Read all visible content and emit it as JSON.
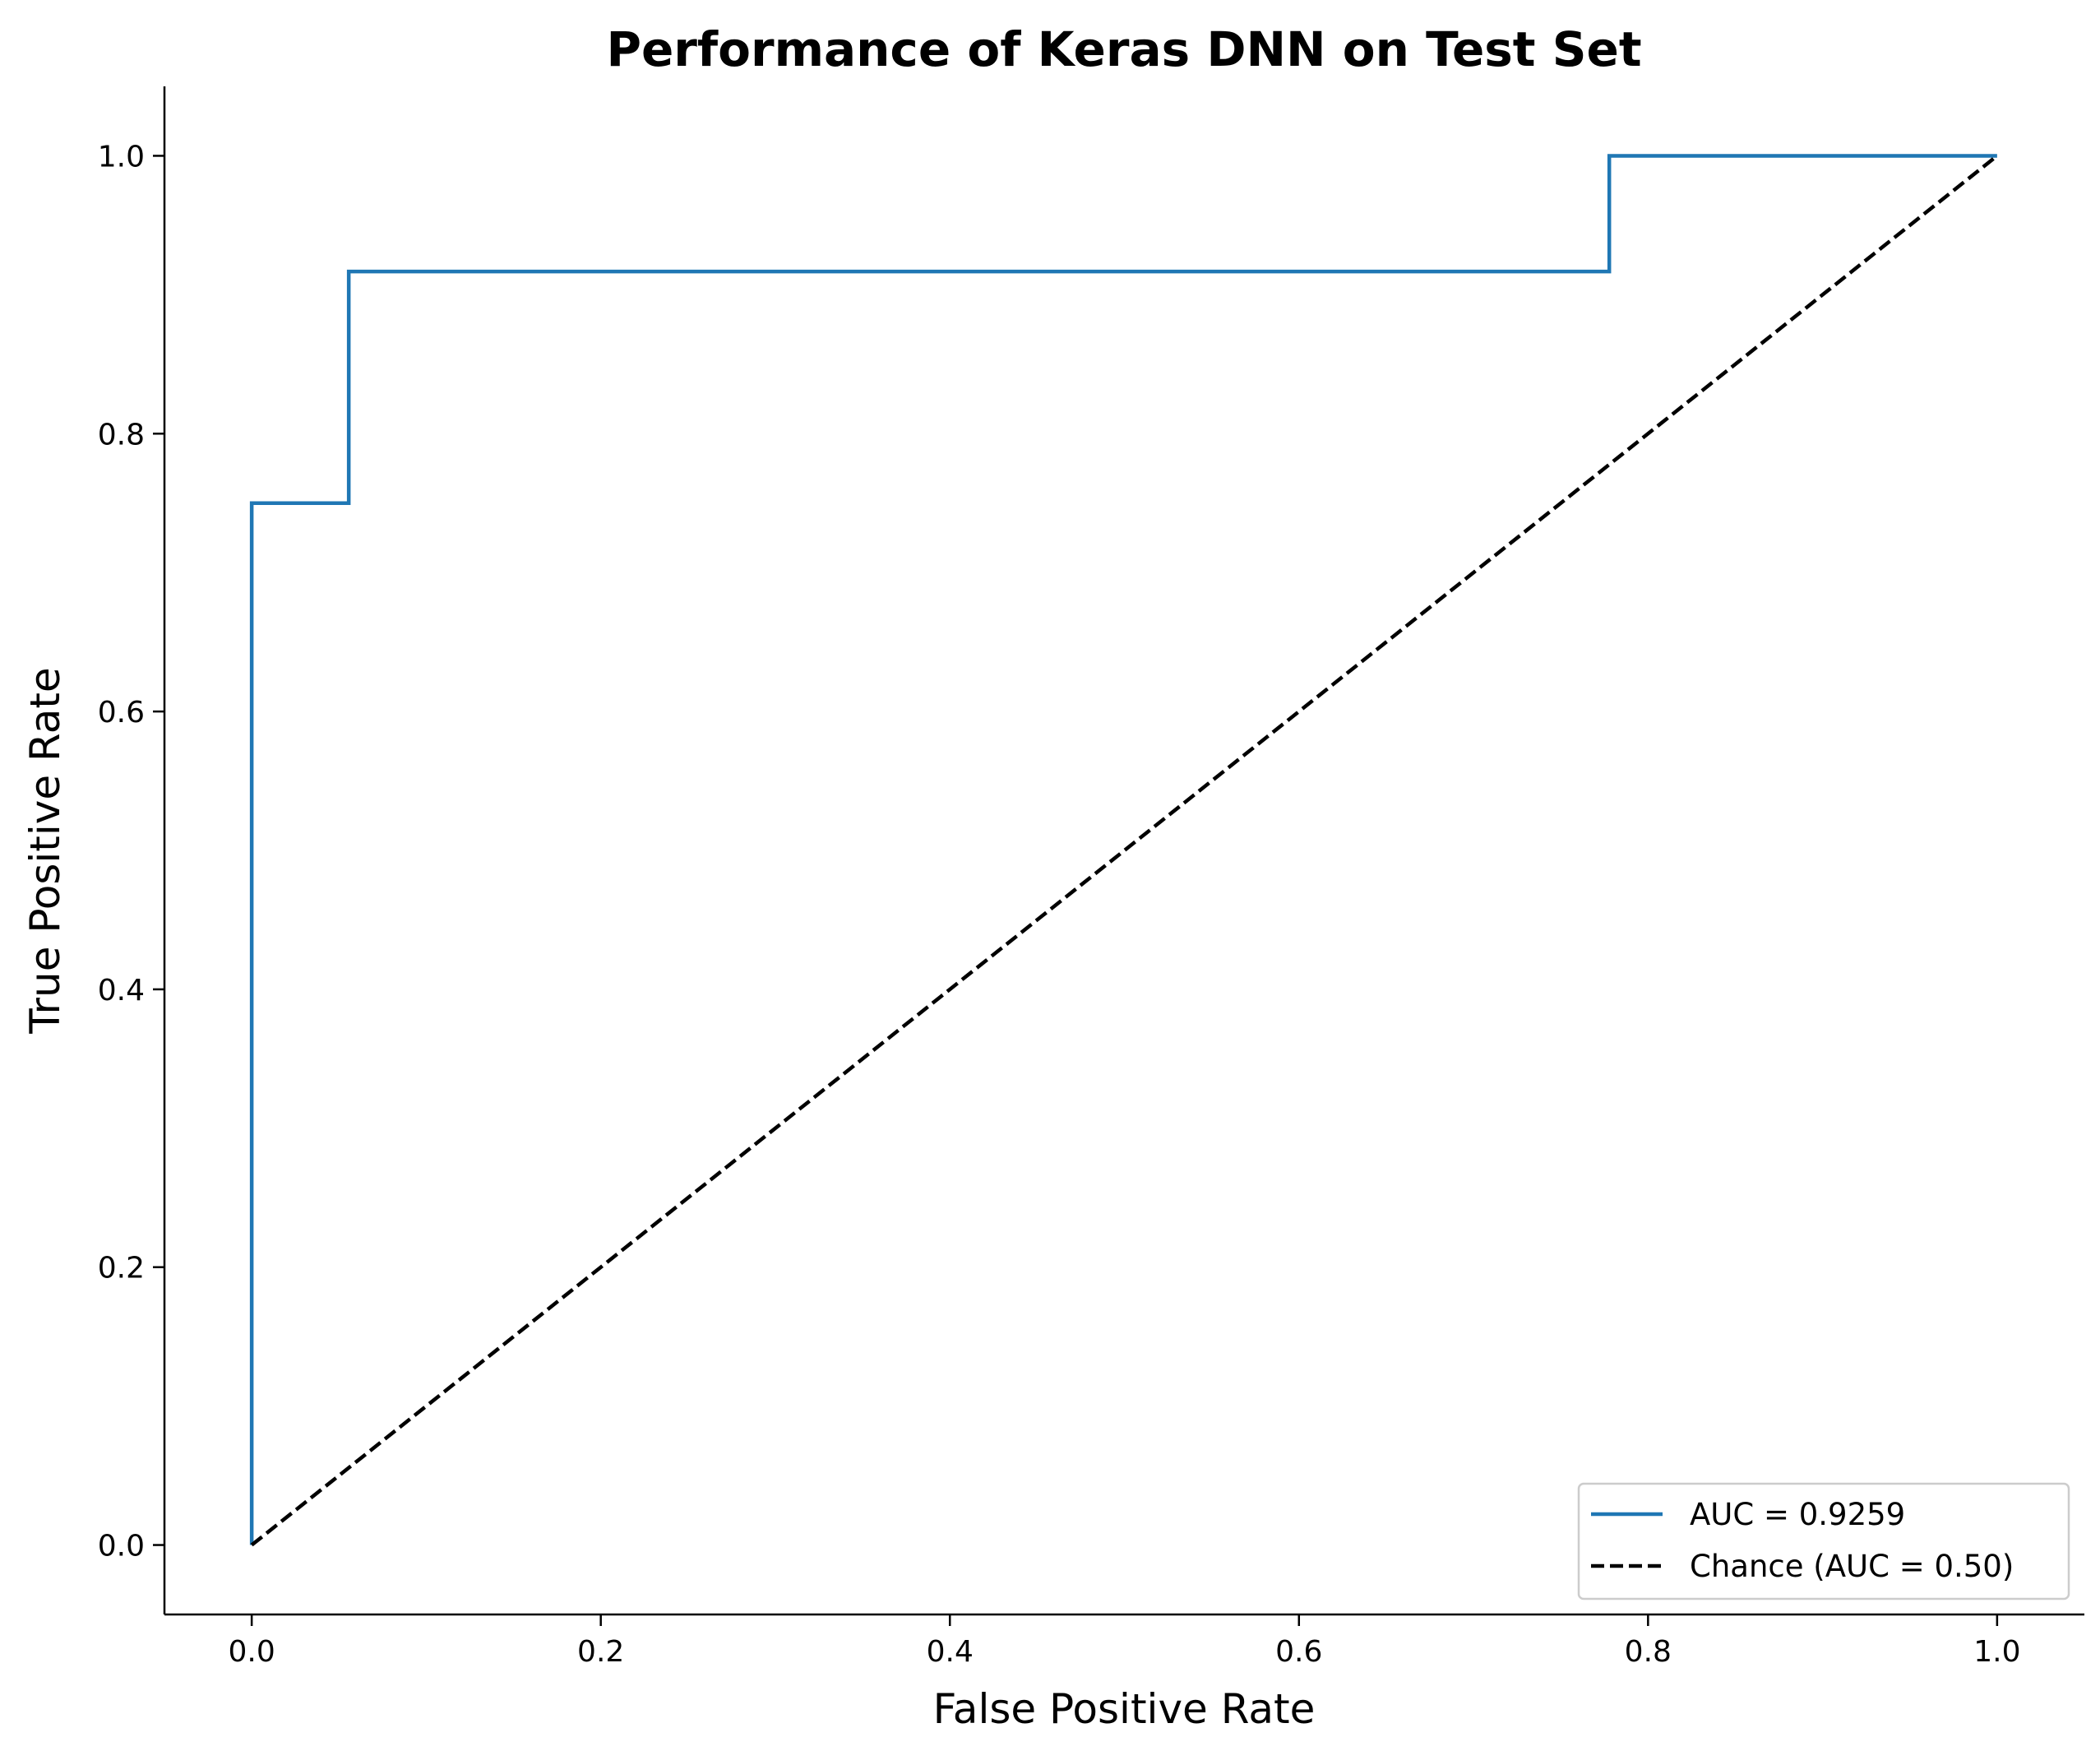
{
  "chart_data": {
    "type": "line",
    "title": "Performance of Keras DNN on Test Set",
    "xlabel": "False Positive Rate",
    "ylabel": "True Positive Rate",
    "xlim": [
      -0.05,
      1.05
    ],
    "ylim": [
      -0.05,
      1.05
    ],
    "xticks": [
      "0.0",
      "0.2",
      "0.4",
      "0.6",
      "0.8",
      "1.0"
    ],
    "yticks": [
      "0.0",
      "0.2",
      "0.4",
      "0.6",
      "0.8",
      "1.0"
    ],
    "grid": false,
    "legend_position": "lower-right",
    "series": [
      {
        "name": "AUC = 0.9259",
        "color": "#1f77b4",
        "style": "solid",
        "x": [
          0.0,
          0.0,
          0.0556,
          0.0556,
          0.7778,
          0.7778,
          1.0
        ],
        "y": [
          0.0,
          0.75,
          0.75,
          0.9167,
          0.9167,
          1.0,
          1.0
        ]
      },
      {
        "name": "Chance (AUC = 0.50)",
        "color": "#000000",
        "style": "dashed",
        "x": [
          0.0,
          1.0
        ],
        "y": [
          0.0,
          1.0
        ]
      }
    ]
  }
}
